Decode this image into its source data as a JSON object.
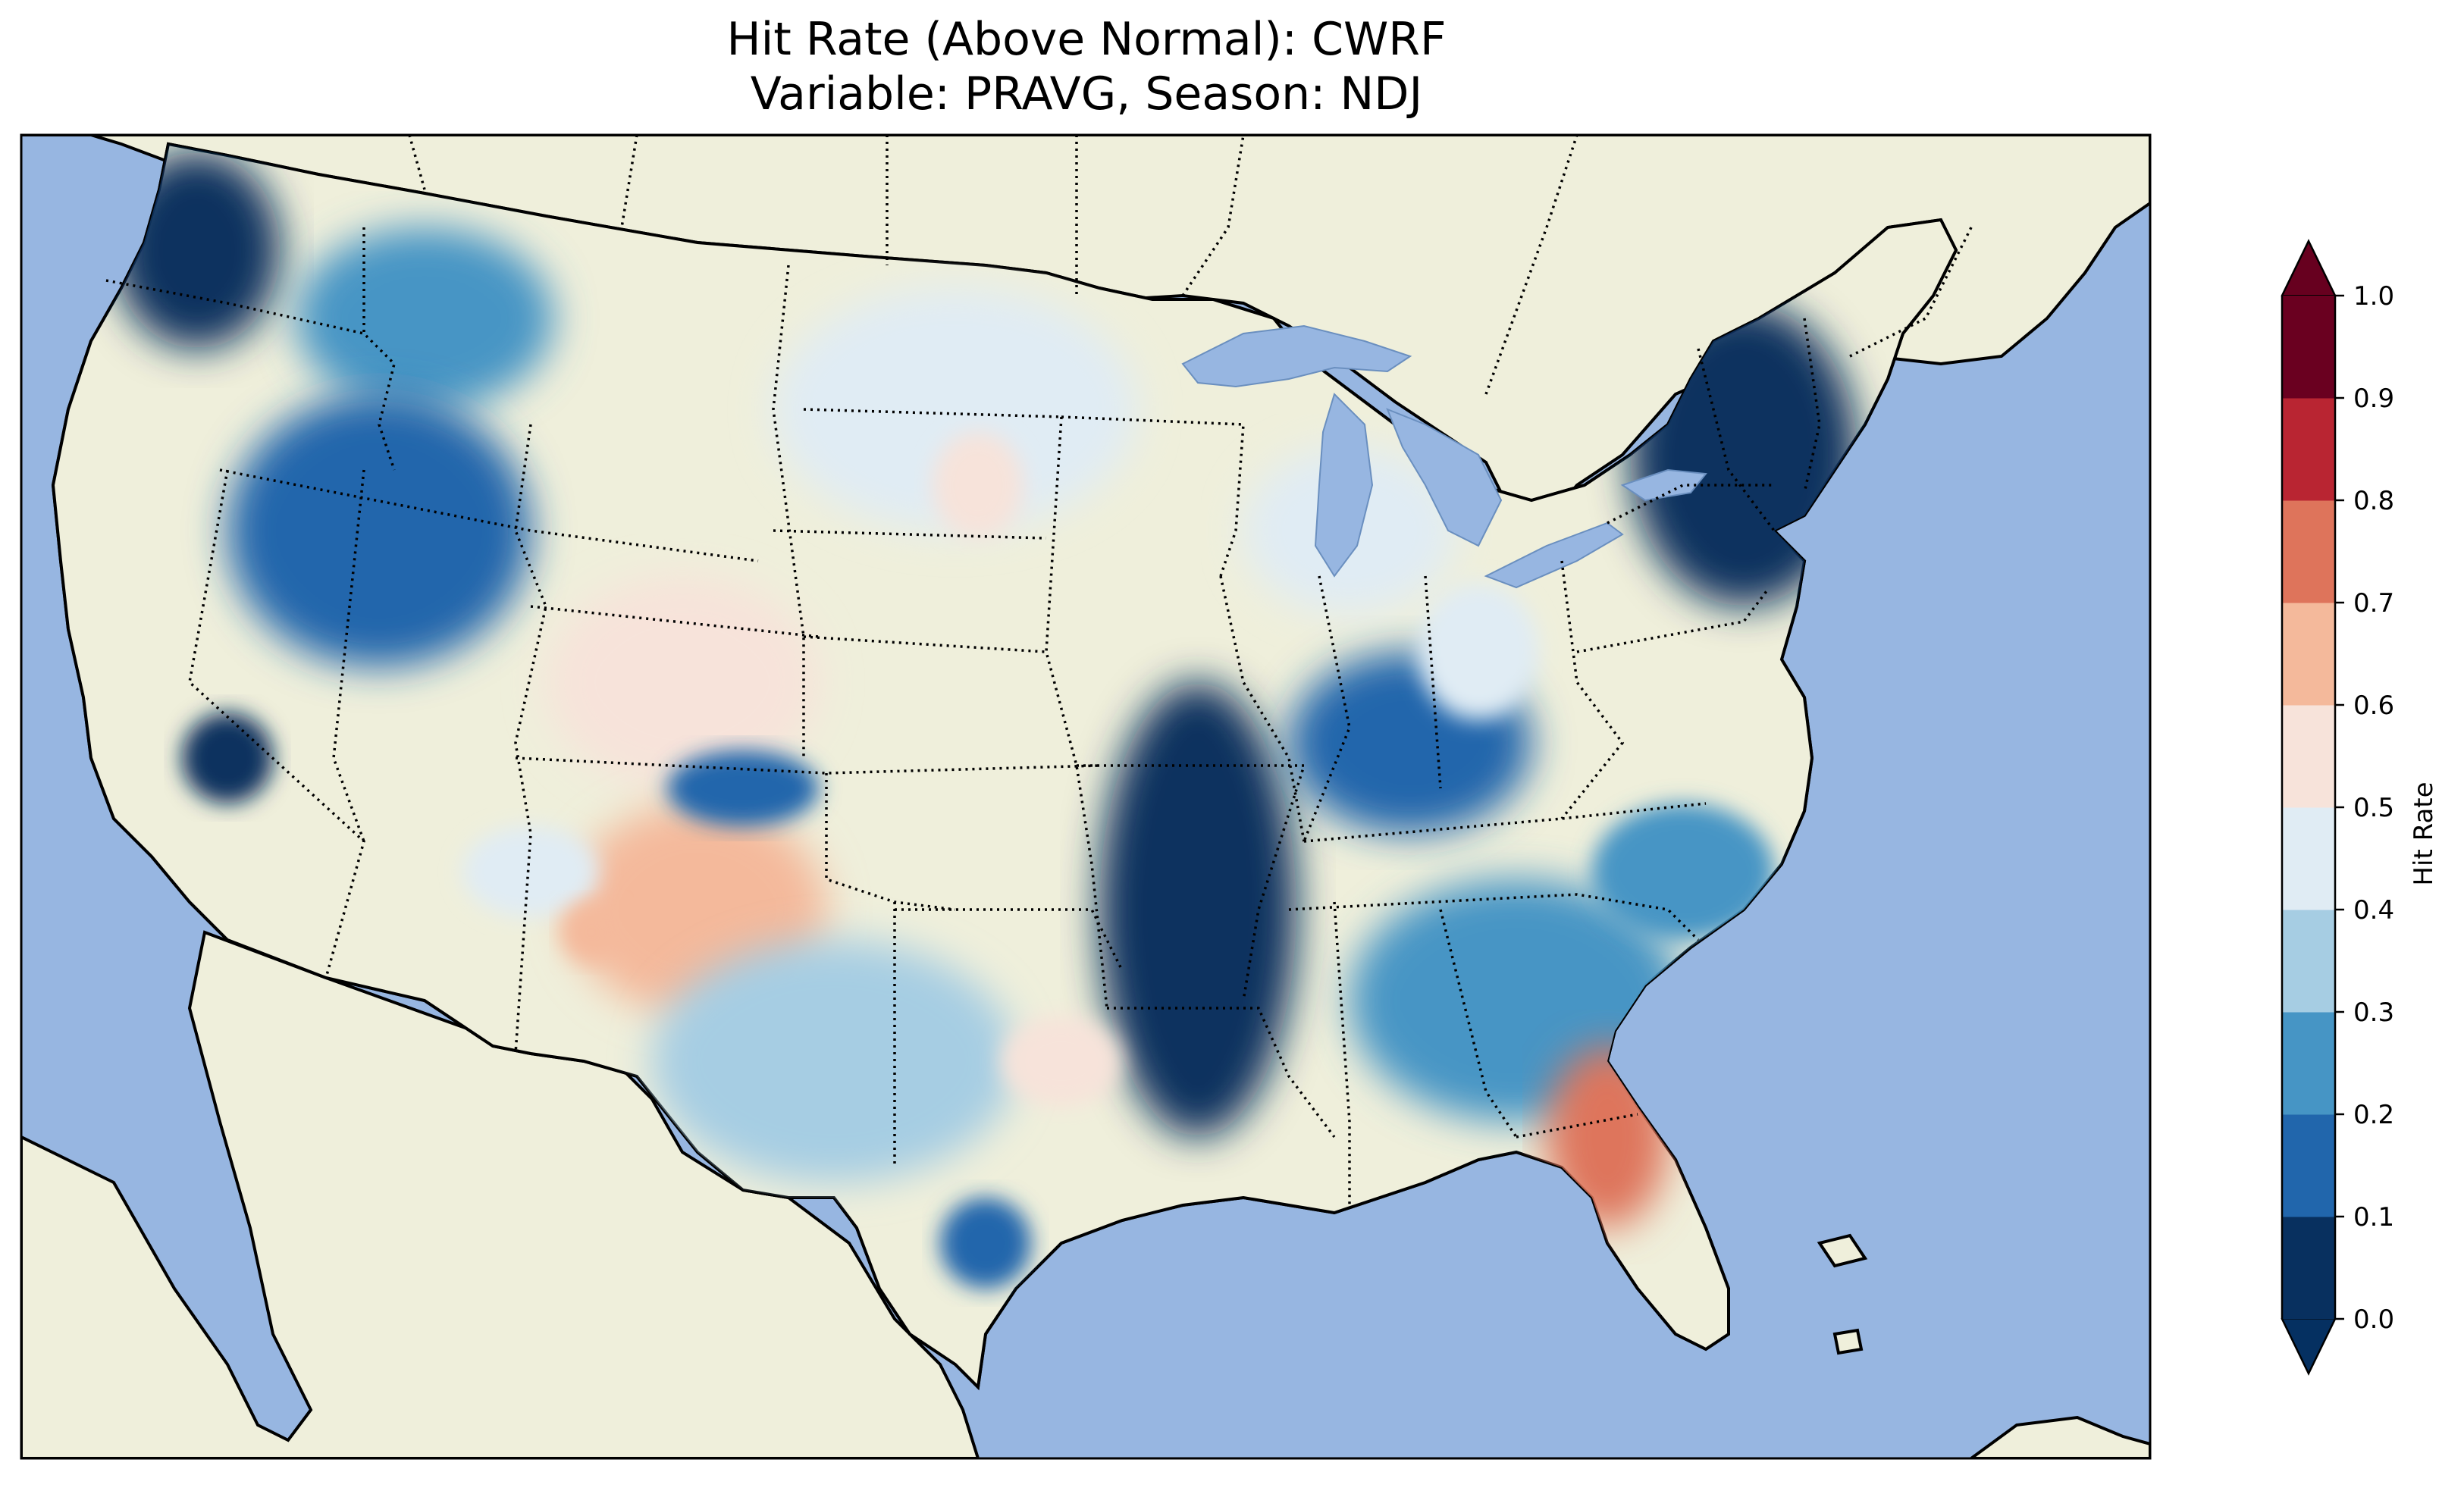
{
  "figure": {
    "title_line1": "Hit Rate (Above Normal): CWRF",
    "title_line2": "Variable: PRAVG, Season: NDJ"
  },
  "map": {
    "ocean_color": "#97b6e1",
    "land_color": "#efefdb",
    "coastline_color": "#000000",
    "state_border_style": "dotted",
    "region": "Contiguous United States",
    "regional_summary": [
      {
        "region": "Pacific Northwest coast",
        "hit_rate": 0.05
      },
      {
        "region": "Northern Rockies",
        "hit_rate": 0.25
      },
      {
        "region": "Idaho / Nevada interior",
        "hit_rate": 0.15
      },
      {
        "region": "Northern Plains",
        "hit_rate": 0.45
      },
      {
        "region": "Central Rockies",
        "hit_rate": 0.55
      },
      {
        "region": "Four Corners / New Mexico",
        "hit_rate": 0.65
      },
      {
        "region": "Texas",
        "hit_rate": 0.35
      },
      {
        "region": "Lower Mississippi Valley",
        "hit_rate": 0.05
      },
      {
        "region": "Ohio Valley",
        "hit_rate": 0.15
      },
      {
        "region": "Great Lakes",
        "hit_rate": 0.45
      },
      {
        "region": "Northeast / New England",
        "hit_rate": 0.05
      },
      {
        "region": "Southeast",
        "hit_rate": 0.25
      },
      {
        "region": "Florida peninsula",
        "hit_rate": 0.75
      }
    ]
  },
  "colorbar": {
    "label": "Hit Rate",
    "ticks": [
      "0.0",
      "0.1",
      "0.2",
      "0.3",
      "0.4",
      "0.5",
      "0.6",
      "0.7",
      "0.8",
      "0.9",
      "1.0"
    ],
    "colors": [
      "#053061",
      "#2166ac",
      "#4393c3",
      "#92c5de",
      "#d1e5f0",
      "#f7f7f7",
      "#fddbc7",
      "#f4a582",
      "#d6604d",
      "#b2182b",
      "#67001f"
    ],
    "bin_colors": [
      "#08305f",
      "#2166ac",
      "#4695c5",
      "#a6cde3",
      "#e0ecf4",
      "#f7e3da",
      "#f4b99b",
      "#de745b",
      "#b92532",
      "#6a0020"
    ],
    "extend": "both"
  }
}
